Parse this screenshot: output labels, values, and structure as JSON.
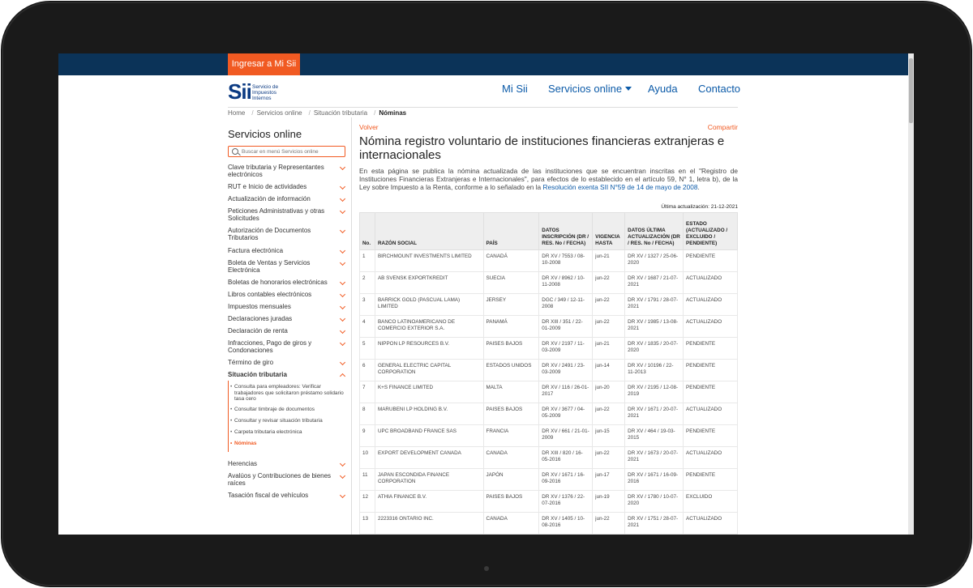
{
  "topbar": {
    "login_label": "Ingresar a Mi Sii"
  },
  "logo": {
    "mark": "Sii",
    "text_line1": "Servicio de",
    "text_line2": "Impuestos",
    "text_line3": "Internos"
  },
  "nav": {
    "mi_sii": "Mi Sii",
    "servicios": "Servicios online",
    "ayuda": "Ayuda",
    "contacto": "Contacto"
  },
  "breadcrumb": [
    "Home",
    "Servicios online",
    "Situación tributaria",
    "Nóminas"
  ],
  "sidebar": {
    "title": "Servicios online",
    "search_placeholder": "Buscar en menú Servicios online",
    "items": [
      "Clave tributaria y Representantes electrónicos",
      "RUT e Inicio de actividades",
      "Actualización de información",
      "Peticiones Administrativas y otras Solicitudes",
      "Autorización de Documentos Tributarios",
      "Factura electrónica",
      "Boleta de Ventas y Servicios Electrónica",
      "Boletas de honorarios electrónicas",
      "Libros contables electrónicos",
      "Impuestos mensuales",
      "Declaraciones juradas",
      "Declaración de renta",
      "Infracciones, Pago de giros y Condonaciones",
      "Término de giro",
      "Situación tributaria"
    ],
    "sub_items": [
      "Consulta para empleadores: Verificar trabajadores que solicitaron préstamo solidario tasa cero",
      "Consultar timbraje de documentos",
      "Consultar y revisar situación tributaria",
      "Carpeta tributaria electrónica",
      "Nóminas"
    ],
    "items_after": [
      "Herencias",
      "Avalúos y Contribuciones de bienes raíces",
      "Tasación fiscal de vehículos"
    ]
  },
  "main": {
    "back_label": "Volver",
    "share_label": "Compartir",
    "title": "Nómina registro voluntario de instituciones financieras extranjeras e internacionales",
    "intro_text": "En esta página se publica la nómina actualizada de las instituciones que se encuentran inscritas en el \"Registro de Instituciones Financieras Extranjeras e Internacionales\", para efectos de lo establecido en el artículo 59, N° 1, letra b), de la Ley sobre Impuesto a la Renta, conforme a lo señalado en la ",
    "intro_link": "Resolución exenta SII N°59 de 14 de mayo de 2008",
    "intro_end": ".",
    "last_update": "Última actualización: 21-12-2021"
  },
  "table": {
    "headers": [
      "No.",
      "RAZÓN SOCIAL",
      "PAÍS",
      "DATOS INSCRIPCIÓN (DR / RES. No / FECHA)",
      "VIGENCIA HASTA",
      "DATOS ÚLTIMA ACTUALIZACIÓN (DR / RES. No / FECHA)",
      "ESTADO (ACTUALIZADO / EXCLUIDO / PENDIENTE)"
    ],
    "rows": [
      [
        "1",
        "BIRCHMOUNT INVESTMENTS LIMITED",
        "CANADÁ",
        "DR XV / 7553 / 08-10-2008",
        "jun-21",
        "DR XV / 1327 / 25-06-2020",
        "PENDIENTE"
      ],
      [
        "2",
        "AB SVENSK EXPORTKREDIT",
        "SUECIA",
        "DR XV / 8962 / 10-11-2008",
        "jun-22",
        "DR XV / 1687 / 21-07-2021",
        "ACTUALIZADO"
      ],
      [
        "3",
        "BARRICK GOLD (PASCUAL LAMA) LIMITED",
        "JERSEY",
        "DGC / 349 / 12-11-2008",
        "jun-22",
        "DR XV / 1791 / 28-07-2021",
        "ACTUALIZADO"
      ],
      [
        "4",
        "BANCO LATINOAMERICANO DE COMERCIO EXTERIOR S.A.",
        "PANAMÁ",
        "DR XIII / 351 / 22-01-2009",
        "jun-22",
        "DR XV / 1985 / 13-08-2021",
        "ACTUALIZADO"
      ],
      [
        "5",
        "NIPPON LP RESOURCES B.V.",
        "PAISES BAJOS",
        "DR XV / 2197 / 11-03-2009",
        "jun-21",
        "DR XV / 1835 / 20-07-2020",
        "PENDIENTE"
      ],
      [
        "6",
        "GENERAL ELECTRIC CAPITAL CORPORATION",
        "ESTADOS UNIDOS",
        "DR XV / 2491 / 23-03-2009",
        "jun-14",
        "DR XV / 10196 / 22-11-2013",
        "PENDIENTE"
      ],
      [
        "7",
        "K+S FINANCE LIMITED",
        "MALTA",
        "DR XV / 116 / 26-01-2017",
        "jun-20",
        "DR XV / 2195 / 12-08-2019",
        "PENDIENTE"
      ],
      [
        "8",
        "MARUBENI LP HOLDING B.V.",
        "PAISES BAJOS",
        "DR XV / 3677 / 04-05-2009",
        "jun-22",
        "DR XV / 1671 / 20-07-2021",
        "ACTUALIZADO"
      ],
      [
        "9",
        "UPC BROADBAND FRANCE SAS",
        "FRANCIA",
        "DR XV / 661 / 21-01-2009",
        "jun-15",
        "DR XV / 464 / 19-03-2015",
        "PENDIENTE"
      ],
      [
        "10",
        "EXPORT DEVELOPMENT CANADA",
        "CANADA",
        "DR XIII / 820 / 16-05-2016",
        "jun-22",
        "DR XV / 1673 / 20-07-2021",
        "ACTUALIZADO"
      ],
      [
        "11",
        "JAPAN ESCONDIDA FINANCE CORPORATION",
        "JAPÓN",
        "DR XV / 1671 / 16-09-2016",
        "jun-17",
        "DR XV / 1671 / 16-09-2016",
        "PENDIENTE"
      ],
      [
        "12",
        "ATHIA FINANCE B.V.",
        "PAISES BAJOS",
        "DR XV / 1376 / 22-07-2016",
        "jun-19",
        "DR XV / 1780 / 10-07-2020",
        "EXCLUIDO"
      ],
      [
        "13",
        "2223316 ONTARIO INC.",
        "CANADA",
        "DR XV / 1405 / 10-08-2016",
        "jun-22",
        "DR XV / 1751 / 28-07-2021",
        "ACTUALIZADO"
      ]
    ]
  }
}
